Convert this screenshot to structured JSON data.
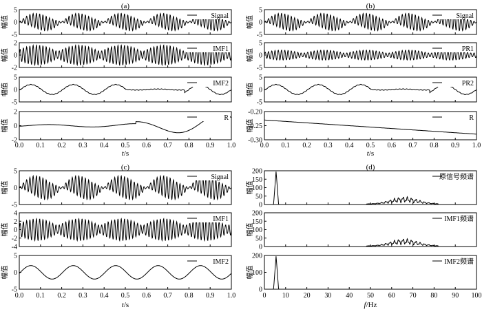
{
  "chart_data": [
    {
      "id": "a",
      "type": "line",
      "panel_label": "(a)",
      "xlabel_var": "t",
      "xlabel_unit": "/s",
      "x_ticks": [
        "0.0",
        "0.1",
        "0.2",
        "0.3",
        "0.4",
        "0.5",
        "0.6",
        "0.7",
        "0.8",
        "0.9",
        "1.0"
      ],
      "xlim": [
        0,
        1
      ],
      "subplots": [
        {
          "ylabel": "幅值",
          "legend": "Signal",
          "ylim": [
            -5,
            5
          ],
          "yticks": [
            "5",
            "0",
            "-5"
          ],
          "curve": {
            "kind": "signal"
          }
        },
        {
          "ylabel": "幅值",
          "legend": "IMF1",
          "ylim": [
            -2,
            2
          ],
          "yticks": [
            "2",
            "0",
            "-2"
          ],
          "curve": {
            "kind": "imf1"
          }
        },
        {
          "ylabel": "幅值",
          "legend": "IMF2",
          "ylim": [
            -5,
            5
          ],
          "yticks": [
            "5",
            "0",
            "-5"
          ],
          "curve": {
            "kind": "imf2_partial"
          }
        },
        {
          "ylabel": "幅值",
          "legend": "R",
          "ylim": [
            -2,
            2
          ],
          "yticks": [
            "2",
            "0",
            "-2"
          ],
          "curve": {
            "kind": "residual_a"
          }
        }
      ]
    },
    {
      "id": "b",
      "type": "line",
      "panel_label": "(b)",
      "xlabel_var": "t",
      "xlabel_unit": "/s",
      "x_ticks": [
        "0.0",
        "0.1",
        "0.2",
        "0.3",
        "0.4",
        "0.5",
        "0.6",
        "0.7",
        "0.8",
        "0.9",
        "1.0"
      ],
      "xlim": [
        0,
        1
      ],
      "subplots": [
        {
          "ylabel": "幅值",
          "legend": "Signal",
          "ylim": [
            -5,
            5
          ],
          "yticks": [
            "5",
            "0",
            "-5"
          ],
          "curve": {
            "kind": "signal"
          }
        },
        {
          "ylabel": "幅值",
          "legend": "PR1",
          "ylim": [
            -5,
            5
          ],
          "yticks": [
            "5",
            "0",
            "-5"
          ],
          "curve": {
            "kind": "imf1",
            "amp": 2
          }
        },
        {
          "ylabel": "幅值",
          "legend": "PR2",
          "ylim": [
            -5,
            5
          ],
          "yticks": [
            "5",
            "0",
            "-5"
          ],
          "curve": {
            "kind": "imf2_partial"
          }
        },
        {
          "ylabel": "幅值",
          "legend": "R",
          "ylim": [
            -0.3,
            -0.2
          ],
          "yticks": [
            "-0.20",
            "-0.25",
            "-0.30"
          ],
          "curve": {
            "kind": "linear",
            "from": -0.23,
            "to": -0.28
          }
        }
      ]
    },
    {
      "id": "c",
      "type": "line",
      "panel_label": "(c)",
      "xlabel_var": "t",
      "xlabel_unit": "/s",
      "x_ticks": [
        "0.0",
        "0.1",
        "0.2",
        "0.3",
        "0.4",
        "0.5",
        "0.6",
        "0.7",
        "0.8",
        "0.9",
        "1.0"
      ],
      "xlim": [
        0,
        1
      ],
      "subplots": [
        {
          "ylabel": "幅值",
          "legend": "Signal",
          "ylim": [
            -5,
            5
          ],
          "yticks": [
            "5",
            "0",
            "-5"
          ],
          "curve": {
            "kind": "signal"
          }
        },
        {
          "ylabel": "幅值",
          "legend": "IMF1",
          "ylim": [
            -4,
            4
          ],
          "yticks": [
            "4",
            "2",
            "0",
            "-2",
            "-4"
          ],
          "curve": {
            "kind": "imf1",
            "amp": 2.6
          }
        },
        {
          "ylabel": "幅值",
          "legend": "IMF2",
          "ylim": [
            -5,
            5
          ],
          "yticks": [
            "5",
            "0",
            "-5"
          ],
          "curve": {
            "kind": "sine5",
            "amp": 2
          }
        }
      ]
    },
    {
      "id": "d",
      "type": "line",
      "panel_label": "(d)",
      "xlabel_var": "f",
      "xlabel_unit": "/Hz",
      "x_ticks": [
        "0",
        "10",
        "20",
        "30",
        "40",
        "50",
        "60",
        "70",
        "80",
        "90",
        "100"
      ],
      "xlim": [
        0,
        100
      ],
      "subplots": [
        {
          "ylabel": "幅值",
          "legend": "原信号频谱",
          "ylim": [
            0,
            200
          ],
          "yticks": [
            "200",
            "150",
            "100",
            "50",
            "0"
          ],
          "curve": {
            "kind": "spectrum",
            "peak": true,
            "band": true
          }
        },
        {
          "ylabel": "幅值",
          "legend": "IMF1频谱",
          "ylim": [
            0,
            200
          ],
          "yticks": [
            "200",
            "150",
            "100",
            "50",
            "0"
          ],
          "curve": {
            "kind": "spectrum",
            "peak": false,
            "band": true
          }
        },
        {
          "ylabel": "幅值",
          "legend": "IMF2频谱",
          "ylim": [
            0,
            200
          ],
          "yticks": [
            "200",
            "100",
            "0"
          ],
          "curve": {
            "kind": "spectrum",
            "peak": true,
            "band": false
          }
        }
      ]
    }
  ]
}
